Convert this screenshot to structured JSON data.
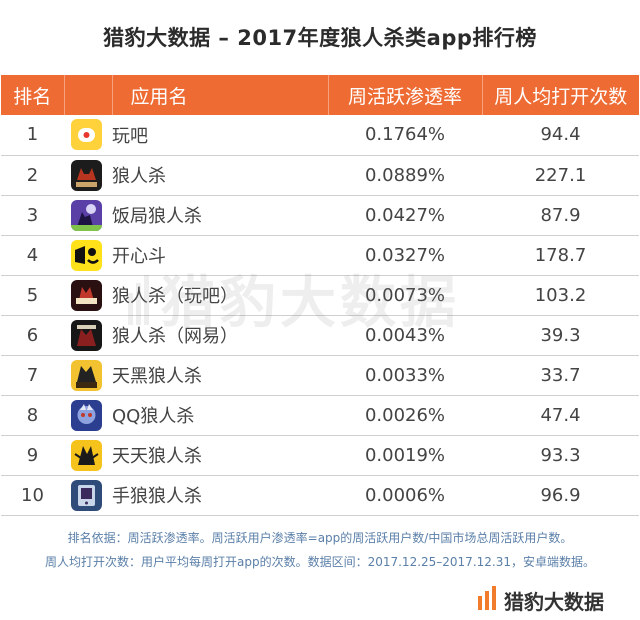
{
  "title": "猎豹大数据 – 2017年度狼人杀类app排行榜",
  "table": {
    "headers": {
      "rank": "排名",
      "app": "应用名",
      "penetration": "周活跃渗透率",
      "opens": "周人均打开次数"
    },
    "rows": [
      {
        "rank": "1",
        "name": "玩吧",
        "penetration": "0.1764%",
        "opens": "94.4",
        "icon": "wanba-icon"
      },
      {
        "rank": "2",
        "name": "狼人杀",
        "penetration": "0.0889%",
        "opens": "227.1",
        "icon": "langrensha-icon"
      },
      {
        "rank": "3",
        "name": "饭局狼人杀",
        "penetration": "0.0427%",
        "opens": "87.9",
        "icon": "fanju-wolf-icon"
      },
      {
        "rank": "4",
        "name": "开心斗",
        "penetration": "0.0327%",
        "opens": "178.7",
        "icon": "kaixindou-icon"
      },
      {
        "rank": "5",
        "name": "狼人杀（玩吧）",
        "penetration": "0.0073%",
        "opens": "103.2",
        "icon": "langrensha-wanba-icon"
      },
      {
        "rank": "6",
        "name": "狼人杀（网易）",
        "penetration": "0.0043%",
        "opens": "39.3",
        "icon": "langrensha-netease-icon"
      },
      {
        "rank": "7",
        "name": "天黑狼人杀",
        "penetration": "0.0033%",
        "opens": "33.7",
        "icon": "tianhei-icon"
      },
      {
        "rank": "8",
        "name": "QQ狼人杀",
        "penetration": "0.0026%",
        "opens": "47.4",
        "icon": "qq-wolf-icon"
      },
      {
        "rank": "9",
        "name": "天天狼人杀",
        "penetration": "0.0019%",
        "opens": "93.3",
        "icon": "tiantian-icon"
      },
      {
        "rank": "10",
        "name": "手狼狼人杀",
        "penetration": "0.0006%",
        "opens": "96.9",
        "icon": "shoulang-icon"
      }
    ]
  },
  "watermark": "猎豹大数据",
  "footnotes": {
    "line1": "排名依据：周活跃渗透率。周活跃用户渗透率=app的周活跃用户数/中国市场总周活跃用户数。",
    "line2": "周人均打开次数：用户平均每周打开app的次数。数据区间：2017.12.25–2017.12.31，安卓端数据。"
  },
  "brand": "猎豹大数据",
  "colors": {
    "header_bg": "#ee6b33",
    "accent": "#f07c2c",
    "footnote_text": "#5a7fa8"
  }
}
